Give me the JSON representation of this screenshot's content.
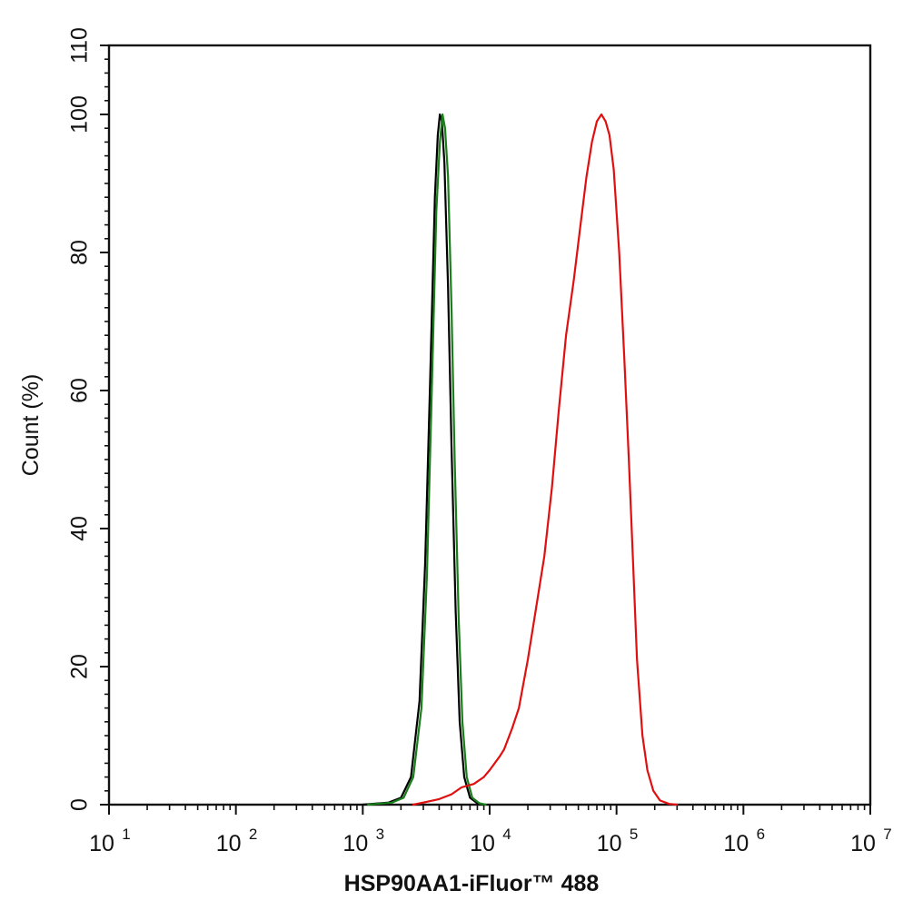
{
  "chart_data": {
    "type": "line",
    "title": "",
    "xlabel": "HSP90AA1-iFluor™ 488",
    "ylabel": "Count  (%)",
    "x_scale": "log",
    "xlim": [
      10,
      10000000
    ],
    "ylim": [
      0,
      110
    ],
    "x_ticks": [
      {
        "base": "10",
        "exp": "1"
      },
      {
        "base": "10",
        "exp": "2"
      },
      {
        "base": "10",
        "exp": "3"
      },
      {
        "base": "10",
        "exp": "4"
      },
      {
        "base": "10",
        "exp": "5"
      },
      {
        "base": "10",
        "exp": "6"
      },
      {
        "base": "10",
        "exp": "7"
      }
    ],
    "y_ticks": [
      "0",
      "20",
      "40",
      "60",
      "80",
      "100",
      "110"
    ],
    "grid": false,
    "legend": "none",
    "series": [
      {
        "color": "#000000",
        "points": [
          [
            1000,
            0
          ],
          [
            1600,
            0.3
          ],
          [
            2000,
            1
          ],
          [
            2400,
            4
          ],
          [
            2800,
            15
          ],
          [
            3100,
            35
          ],
          [
            3400,
            62
          ],
          [
            3700,
            88
          ],
          [
            3900,
            97
          ],
          [
            4050,
            100
          ],
          [
            4200,
            99
          ],
          [
            4400,
            93
          ],
          [
            4700,
            75
          ],
          [
            5000,
            52
          ],
          [
            5400,
            28
          ],
          [
            5800,
            12
          ],
          [
            6300,
            4
          ],
          [
            7000,
            1
          ],
          [
            8000,
            0.2
          ],
          [
            9000,
            0
          ]
        ]
      },
      {
        "color": "#1a7f1a",
        "points": [
          [
            1100,
            0
          ],
          [
            1700,
            0.3
          ],
          [
            2100,
            1
          ],
          [
            2500,
            4
          ],
          [
            2900,
            14
          ],
          [
            3200,
            33
          ],
          [
            3500,
            60
          ],
          [
            3800,
            86
          ],
          [
            4050,
            96
          ],
          [
            4250,
            100
          ],
          [
            4450,
            98
          ],
          [
            4700,
            91
          ],
          [
            5000,
            72
          ],
          [
            5300,
            50
          ],
          [
            5700,
            27
          ],
          [
            6100,
            12
          ],
          [
            6600,
            4
          ],
          [
            7300,
            1
          ],
          [
            8300,
            0.2
          ],
          [
            9300,
            0
          ]
        ]
      },
      {
        "color": "#e01010",
        "points": [
          [
            2500,
            0
          ],
          [
            3000,
            0.3
          ],
          [
            4000,
            0.8
          ],
          [
            5000,
            1.5
          ],
          [
            6000,
            2.5
          ],
          [
            7500,
            3
          ],
          [
            9000,
            4
          ],
          [
            10000,
            5
          ],
          [
            12000,
            7
          ],
          [
            13000,
            8
          ],
          [
            15000,
            11
          ],
          [
            17000,
            14
          ],
          [
            20000,
            21
          ],
          [
            23000,
            28
          ],
          [
            27000,
            36
          ],
          [
            31000,
            46
          ],
          [
            35000,
            57
          ],
          [
            40000,
            68
          ],
          [
            46000,
            76
          ],
          [
            52000,
            84
          ],
          [
            58000,
            91
          ],
          [
            64000,
            96
          ],
          [
            70000,
            99
          ],
          [
            76000,
            100
          ],
          [
            82000,
            99
          ],
          [
            88000,
            97
          ],
          [
            95000,
            92
          ],
          [
            105000,
            80
          ],
          [
            115000,
            65
          ],
          [
            125000,
            50
          ],
          [
            135000,
            35
          ],
          [
            145000,
            21
          ],
          [
            160000,
            10
          ],
          [
            175000,
            5
          ],
          [
            195000,
            2
          ],
          [
            220000,
            0.6
          ],
          [
            260000,
            0.1
          ],
          [
            300000,
            0
          ]
        ]
      }
    ]
  }
}
